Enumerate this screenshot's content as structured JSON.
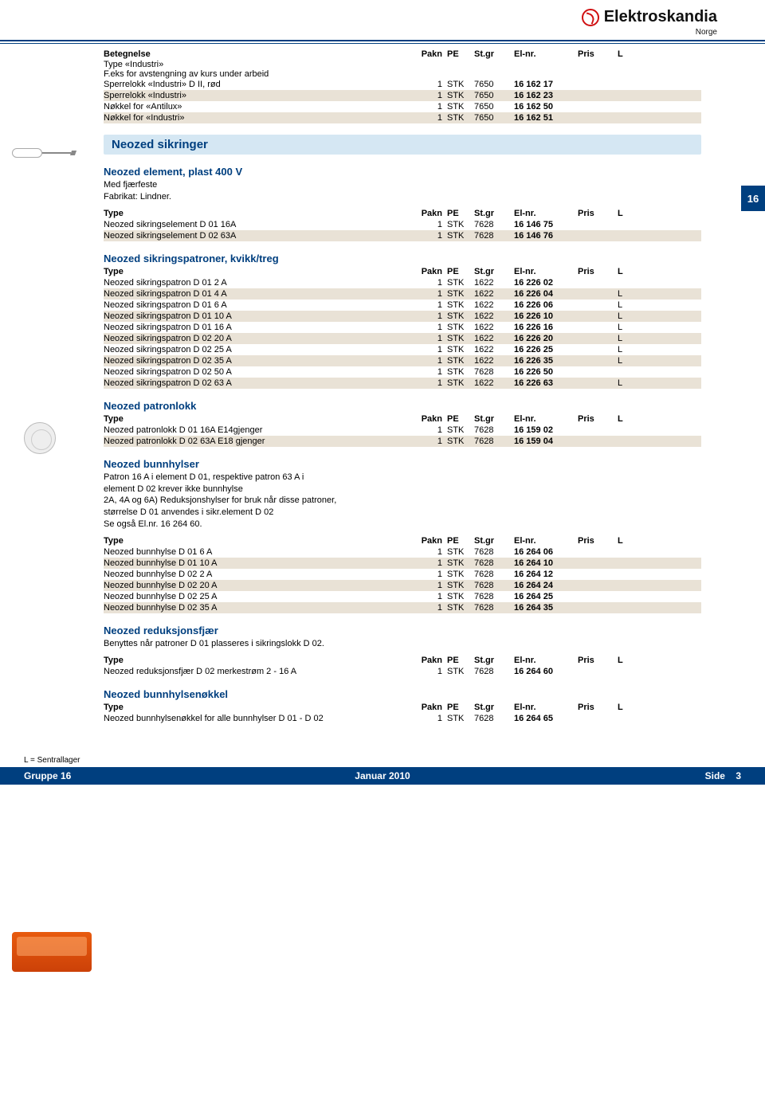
{
  "brand": {
    "name": "Elektroskandia",
    "sub": "Norge"
  },
  "sidebar_tab": "16",
  "headers": {
    "type": "Type",
    "betegnelse": "Betegnelse",
    "pakn": "Pakn",
    "pe": "PE",
    "stgr": "St.gr",
    "elnr": "El-nr.",
    "pris": "Pris",
    "l": "L"
  },
  "top": {
    "title": "Betegnelse",
    "sub1": "Type «Industri»",
    "sub2": "F.eks for avstengning av kurs under arbeid",
    "rows": [
      {
        "t": "Sperrelokk «Industri» D II, rød",
        "pakn": "1",
        "pe": "STK",
        "stgr": "7650",
        "elnr": "16 162 17",
        "l": ""
      },
      {
        "t": "Sperrelokk «Industri»",
        "pakn": "1",
        "pe": "STK",
        "stgr": "7650",
        "elnr": "16 162 23",
        "l": ""
      },
      {
        "t": "Nøkkel  for «Antilux»",
        "pakn": "1",
        "pe": "STK",
        "stgr": "7650",
        "elnr": "16 162 50",
        "l": ""
      },
      {
        "t": "Nøkkel  for «Industri»",
        "pakn": "1",
        "pe": "STK",
        "stgr": "7650",
        "elnr": "16 162 51",
        "l": ""
      }
    ]
  },
  "section_bar": "Neozed sikringer",
  "element": {
    "title": "Neozed element, plast 400 V",
    "desc": "Med fjærfeste\nFabrikat: Lindner.",
    "rows": [
      {
        "t": "Neozed sikringselement D 01 16A",
        "pakn": "1",
        "pe": "STK",
        "stgr": "7628",
        "elnr": "16 146 75",
        "l": ""
      },
      {
        "t": "Neozed sikringselement D 02 63A",
        "pakn": "1",
        "pe": "STK",
        "stgr": "7628",
        "elnr": "16 146 76",
        "l": ""
      }
    ]
  },
  "patroner": {
    "title": "Neozed sikringspatroner, kvikk/treg",
    "rows": [
      {
        "t": "Neozed sikringspatron  D 01 2 A",
        "pakn": "1",
        "pe": "STK",
        "stgr": "1622",
        "elnr": "16 226 02",
        "l": ""
      },
      {
        "t": "Neozed sikringspatron  D 01 4 A",
        "pakn": "1",
        "pe": "STK",
        "stgr": "1622",
        "elnr": "16 226 04",
        "l": "L"
      },
      {
        "t": "Neozed sikringspatron  D 01 6 A",
        "pakn": "1",
        "pe": "STK",
        "stgr": "1622",
        "elnr": "16 226 06",
        "l": "L"
      },
      {
        "t": "Neozed sikringspatron  D 01 10 A",
        "pakn": "1",
        "pe": "STK",
        "stgr": "1622",
        "elnr": "16 226 10",
        "l": "L"
      },
      {
        "t": "Neozed sikringspatron  D 01 16 A",
        "pakn": "1",
        "pe": "STK",
        "stgr": "1622",
        "elnr": "16 226 16",
        "l": "L"
      },
      {
        "t": "Neozed sikringspatron  D 02 20 A",
        "pakn": "1",
        "pe": "STK",
        "stgr": "1622",
        "elnr": "16 226 20",
        "l": "L"
      },
      {
        "t": "Neozed sikringspatron  D 02 25 A",
        "pakn": "1",
        "pe": "STK",
        "stgr": "1622",
        "elnr": "16 226 25",
        "l": "L"
      },
      {
        "t": "Neozed sikringspatron  D 02 35 A",
        "pakn": "1",
        "pe": "STK",
        "stgr": "1622",
        "elnr": "16 226 35",
        "l": "L"
      },
      {
        "t": "Neozed sikringspatron  D 02 50 A",
        "pakn": "1",
        "pe": "STK",
        "stgr": "7628",
        "elnr": "16 226 50",
        "l": ""
      },
      {
        "t": "Neozed sikringspatron  D 02 63 A",
        "pakn": "1",
        "pe": "STK",
        "stgr": "1622",
        "elnr": "16 226 63",
        "l": "L"
      }
    ]
  },
  "patronlokk": {
    "title": "Neozed patronlokk",
    "rows": [
      {
        "t": "Neozed patronlokk  D 01 16A E14gjenger",
        "pakn": "1",
        "pe": "STK",
        "stgr": "7628",
        "elnr": "16 159 02",
        "l": ""
      },
      {
        "t": "Neozed patronlokk  D 02 63A E18 gjenger",
        "pakn": "1",
        "pe": "STK",
        "stgr": "7628",
        "elnr": "16 159 04",
        "l": ""
      }
    ]
  },
  "bunnhylser": {
    "title": "Neozed bunnhylser",
    "desc": "Patron 16 A i element D 01, respektive patron 63 A i\nelement D 02 krever ikke bunnhylse\n2A, 4A og 6A) Reduksjonshylser for bruk når disse patroner,\nstørrelse D 01 anvendes i sikr.element D 02\nSe også El.nr. 16 264 60.",
    "rows": [
      {
        "t": "Neozed bunnhylse  D 01 6 A",
        "pakn": "1",
        "pe": "STK",
        "stgr": "7628",
        "elnr": "16 264 06",
        "l": ""
      },
      {
        "t": "Neozed bunnhylse  D 01 10 A",
        "pakn": "1",
        "pe": "STK",
        "stgr": "7628",
        "elnr": "16 264 10",
        "l": ""
      },
      {
        "t": "Neozed bunnhylse  D 02 2 A",
        "pakn": "1",
        "pe": "STK",
        "stgr": "7628",
        "elnr": "16 264 12",
        "l": ""
      },
      {
        "t": "Neozed bunnhylse  D 02 20 A",
        "pakn": "1",
        "pe": "STK",
        "stgr": "7628",
        "elnr": "16 264 24",
        "l": ""
      },
      {
        "t": "Neozed bunnhylse  D 02 25 A",
        "pakn": "1",
        "pe": "STK",
        "stgr": "7628",
        "elnr": "16 264 25",
        "l": ""
      },
      {
        "t": "Neozed bunnhylse  D 02 35 A",
        "pakn": "1",
        "pe": "STK",
        "stgr": "7628",
        "elnr": "16 264 35",
        "l": ""
      }
    ]
  },
  "reduksjonsfjaer": {
    "title": "Neozed reduksjonsfjær",
    "desc": "Benyttes når patroner D 01 plasseres i sikringslokk D 02.",
    "rows": [
      {
        "t": "Neozed reduksjonsfjær   D 02 merkestrøm 2 - 16 A",
        "pakn": "1",
        "pe": "STK",
        "stgr": "7628",
        "elnr": "16 264 60",
        "l": ""
      }
    ]
  },
  "bunnhylsenokkel": {
    "title": "Neozed bunnhylsenøkkel",
    "rows": [
      {
        "t": "Neozed bunnhylsenøkkel for alle bunnhylser D 01 - D 02",
        "pakn": "1",
        "pe": "STK",
        "stgr": "7628",
        "elnr": "16 264 65",
        "l": ""
      }
    ]
  },
  "footer": {
    "legend": "L = Sentrallager",
    "left": "Gruppe 16",
    "mid": "Januar 2010",
    "right_label": "Side",
    "right_num": "3"
  }
}
